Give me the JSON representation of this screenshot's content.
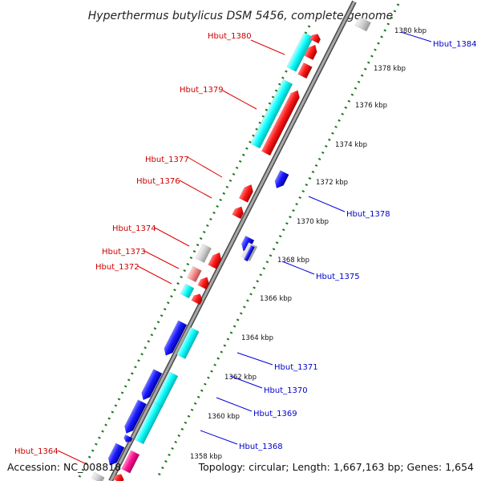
{
  "title": "Hyperthermus butylicus DSM 5456, complete genome",
  "accession": "Accession: NC_008818",
  "summary": "Topology: circular; Length: 1,667,163 bp; Genes: 1,654",
  "colors": {
    "forward_gene": "#ff0000",
    "reverse_gene": "#0000ff",
    "cds_highlight": "#00ffff",
    "rna_gene": "#ff1493",
    "backbone": "#8c8c8c",
    "tick_dots": "#1a7a1a",
    "label_red": "#cc0000",
    "label_blue": "#0000cc"
  },
  "scale_ticks": [
    {
      "label": "1380 kbp"
    },
    {
      "label": "1378 kbp"
    },
    {
      "label": "1376 kbp"
    },
    {
      "label": "1374 kbp"
    },
    {
      "label": "1372 kbp"
    },
    {
      "label": "1370 kbp"
    },
    {
      "label": "1368 kbp"
    },
    {
      "label": "1366 kbp"
    },
    {
      "label": "1364 kbp"
    },
    {
      "label": "1362 kbp"
    },
    {
      "label": "1360 kbp"
    },
    {
      "label": "1358 kbp"
    }
  ],
  "gene_labels_left": [
    {
      "name": "Hbut_1380"
    },
    {
      "name": "Hbut_1379"
    },
    {
      "name": "Hbut_1377"
    },
    {
      "name": "Hbut_1376"
    },
    {
      "name": "Hbut_1374"
    },
    {
      "name": "Hbut_1373"
    },
    {
      "name": "Hbut_1372"
    },
    {
      "name": "Hbut_1364"
    }
  ],
  "gene_labels_right": [
    {
      "name": "Hbut_1384"
    },
    {
      "name": "Hbut_1378"
    },
    {
      "name": "Hbut_1375"
    },
    {
      "name": "Hbut_1371"
    },
    {
      "name": "Hbut_1370"
    },
    {
      "name": "Hbut_1369"
    },
    {
      "name": "Hbut_1368"
    }
  ]
}
